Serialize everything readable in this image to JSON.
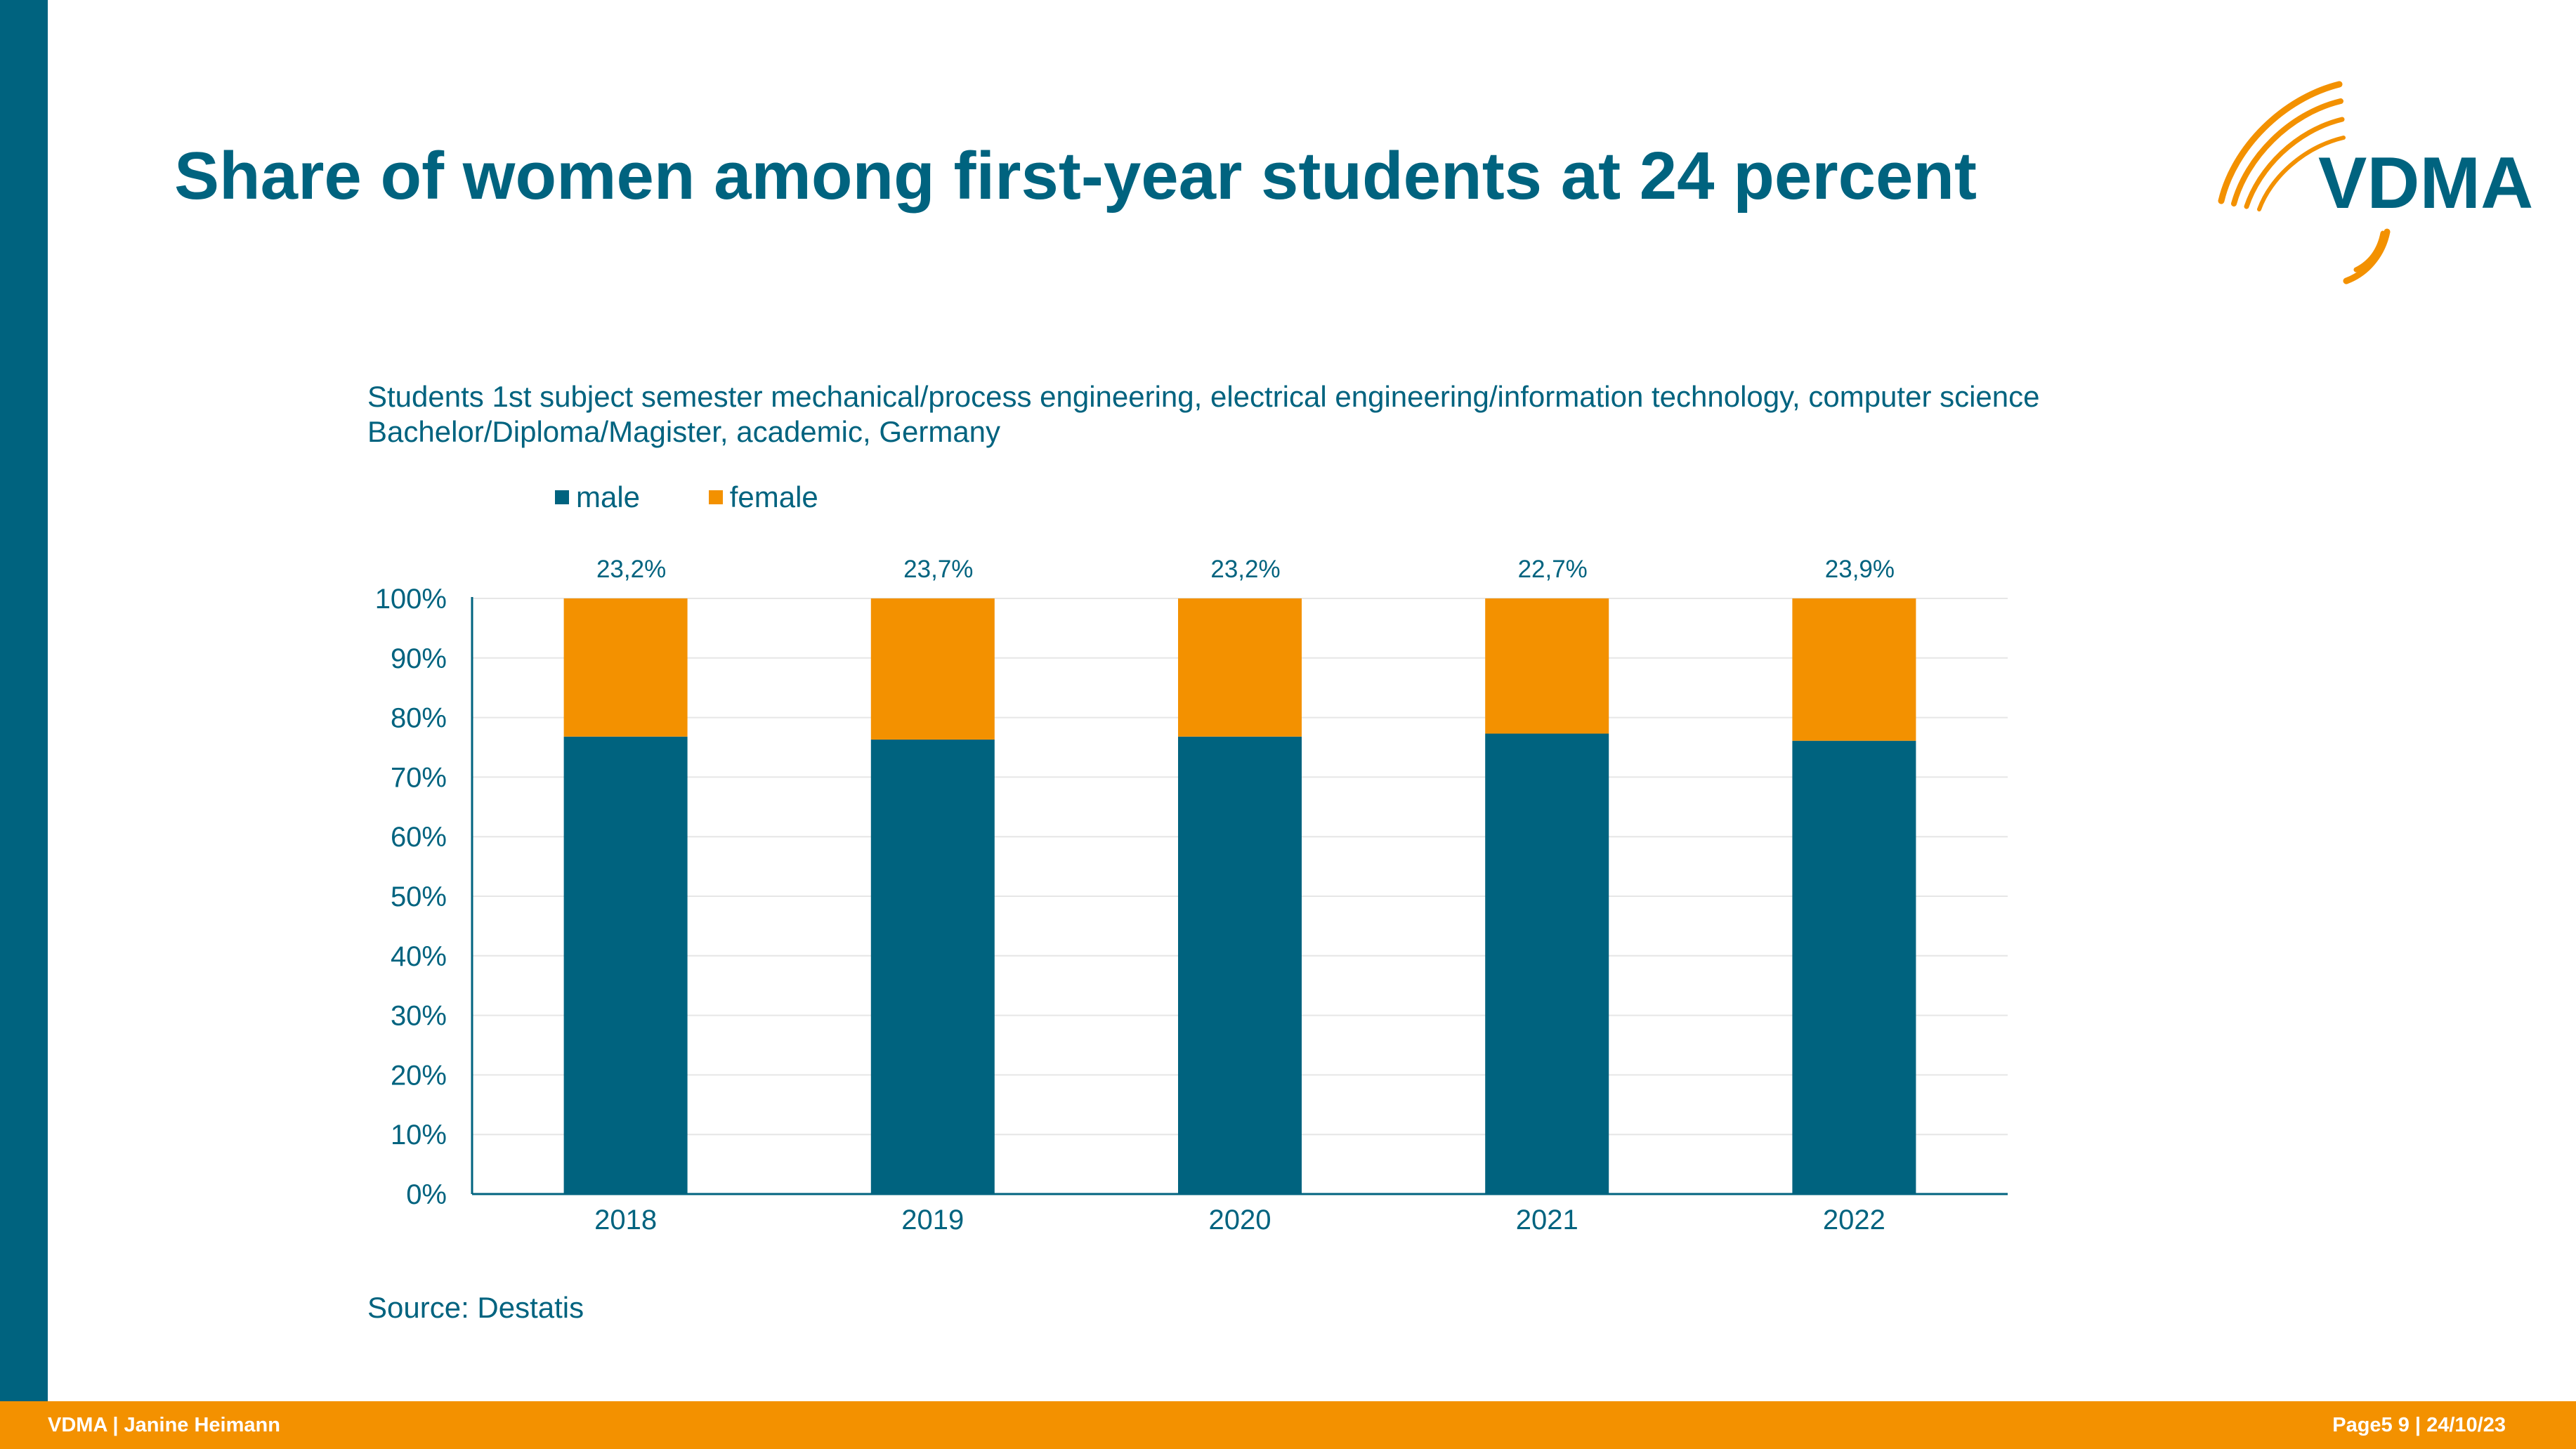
{
  "header": {
    "title": "Share of women among first-year students at 24 percent",
    "logo_text": "VDMA"
  },
  "chart_subtitle": {
    "line1": "Students 1st subject semester mechanical/process engineering, electrical engineering/information technology, computer science",
    "line2": "Bachelor/Diploma/Magister, academic, Germany"
  },
  "colors": {
    "primary": "#00637f",
    "accent": "#f39100",
    "grid": "#e6e6e6"
  },
  "chart_data": {
    "type": "bar",
    "stacked": true,
    "categories": [
      "2018",
      "2019",
      "2020",
      "2021",
      "2022"
    ],
    "series": [
      {
        "name": "male",
        "values": [
          76.8,
          76.3,
          76.8,
          77.3,
          76.1
        ],
        "color": "#00637f"
      },
      {
        "name": "female",
        "values": [
          23.2,
          23.7,
          23.2,
          22.7,
          23.9
        ],
        "color": "#f39100"
      }
    ],
    "data_labels": [
      "23,2%",
      "23,7%",
      "23,2%",
      "22,7%",
      "23,9%"
    ],
    "y_ticks": [
      "0%",
      "10%",
      "20%",
      "30%",
      "40%",
      "50%",
      "60%",
      "70%",
      "80%",
      "90%",
      "100%"
    ],
    "ylim": [
      0,
      100
    ],
    "grid": true,
    "legend_position": "top-left"
  },
  "source": "Source: Destatis",
  "footer": {
    "left": "VDMA | Janine Heimann",
    "right": "Page5 9 | 24/10/23"
  }
}
